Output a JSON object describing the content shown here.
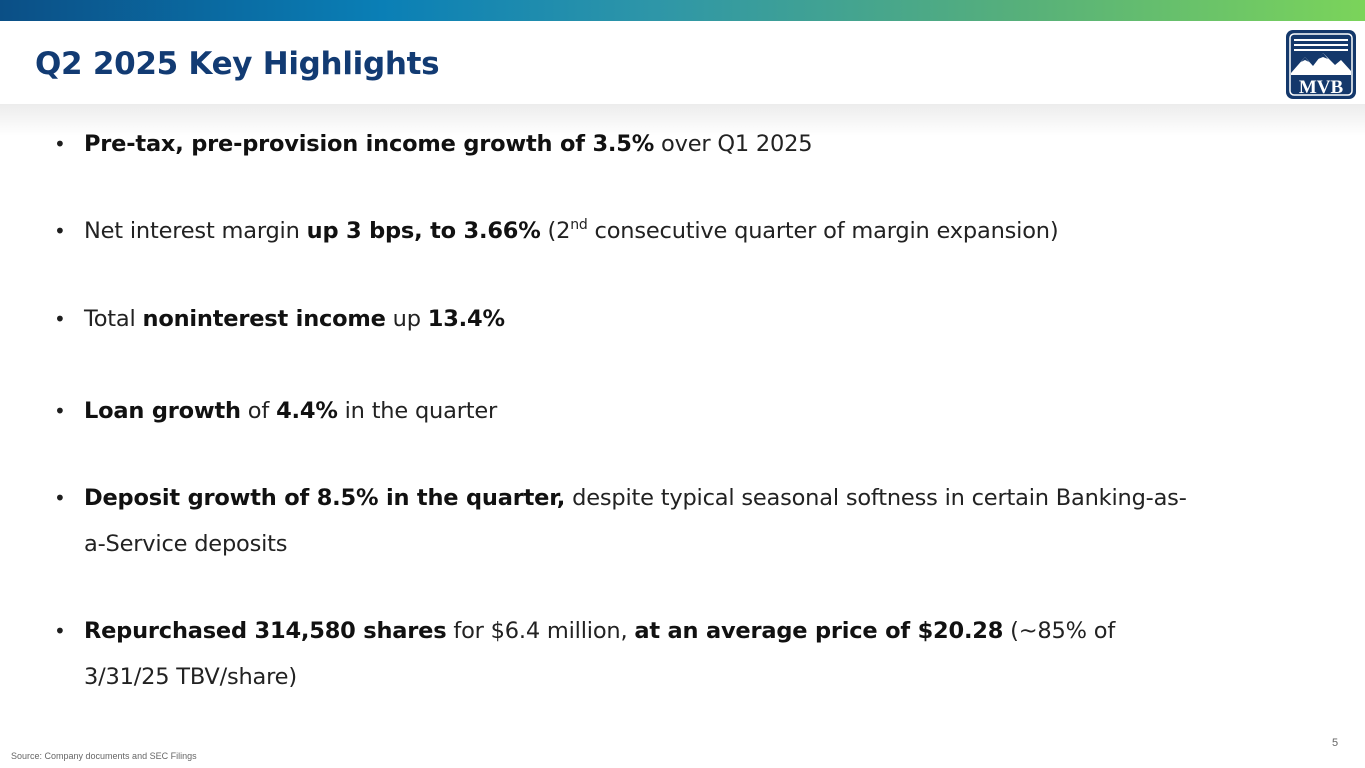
{
  "slide": {
    "title": "Q2 2025 Key Highlights",
    "logo_text": "MVB",
    "source": "Source: Company documents and SEC Filings",
    "page_number": "5"
  },
  "colors": {
    "title": "#123b73",
    "logo_navy": "#14386b",
    "bar_start": "#0b4f86",
    "bar_end": "#7bd45a"
  },
  "bullets": [
    {
      "bold_1": "Pre-tax, pre-provision income growth of 3.5%",
      "text_1": " over Q1 2025"
    },
    {
      "text_1": "Net interest margin ",
      "bold_1": "up 3 bps, to 3.66%",
      "text_2": " (2",
      "sup": "nd",
      "text_3": " consecutive quarter of margin expansion)"
    },
    {
      "text_1": "Total ",
      "bold_1": "noninterest income",
      "text_2": " up ",
      "bold_2": "13.4%"
    },
    {
      "bold_1": "Loan growth",
      "text_1": " of ",
      "bold_2": "4.4%",
      "text_2": " in the quarter"
    },
    {
      "bold_1": "Deposit growth of 8.5% in the quarter,",
      "text_1": " despite typical seasonal softness in certain Banking-as-a-Service deposits"
    },
    {
      "bold_1": "Repurchased 314,580 shares",
      "text_1": " for $6.4 million, ",
      "bold_2": "at an average price of $20.28",
      "text_2": " (~85% of 3/31/25 TBV/share)"
    }
  ]
}
